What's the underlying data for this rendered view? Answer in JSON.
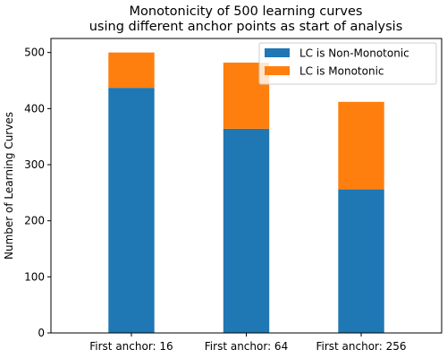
{
  "chart_data": {
    "type": "bar",
    "stacked": true,
    "title_line1": "Monotonicity of 500 learning curves",
    "title_line2": "using different anchor points as start of analysis",
    "xlabel": "",
    "ylabel": "Number of Learning Curves",
    "categories": [
      "First anchor: 16",
      "First anchor: 64",
      "First anchor: 256"
    ],
    "series": [
      {
        "name": "LC is Non-Monotonic",
        "color": "#1f77b4",
        "values": [
          437,
          364,
          256
        ]
      },
      {
        "name": "LC is Monotonic",
        "color": "#ff7f0e",
        "values": [
          63,
          118,
          156
        ]
      }
    ],
    "ylim": [
      0,
      525
    ],
    "yticks": [
      "0",
      "100",
      "200",
      "300",
      "400",
      "500"
    ],
    "legend_position": "upper-right",
    "grid": false
  }
}
